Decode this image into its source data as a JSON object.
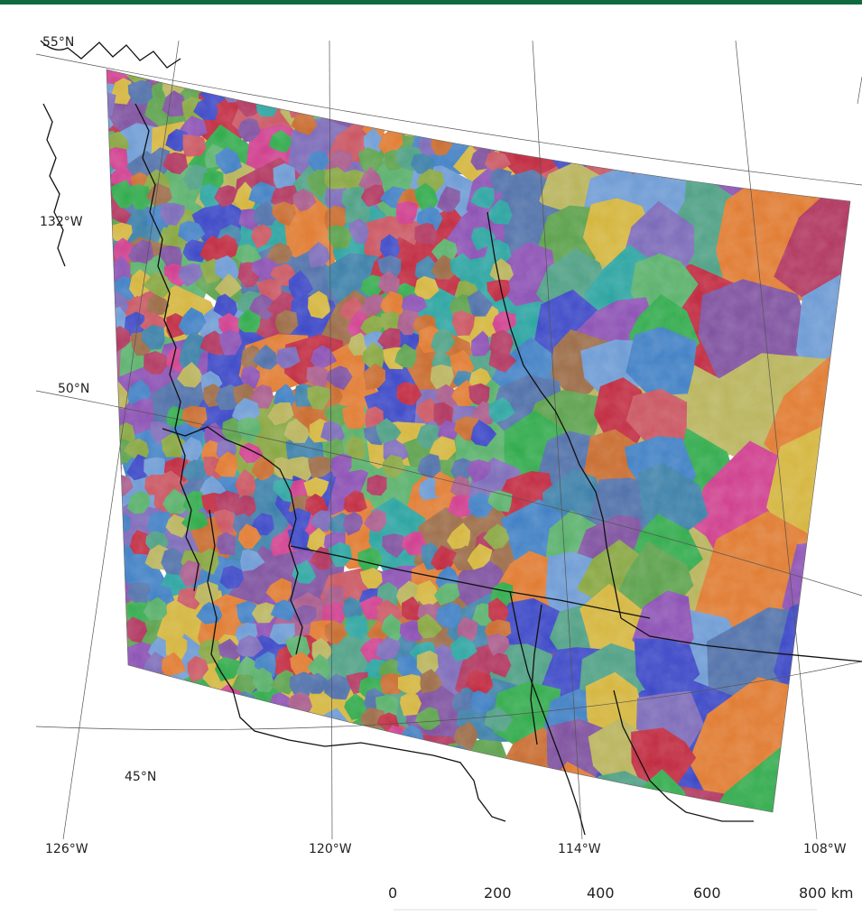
{
  "map": {
    "graticule_labels": {
      "lat_55": "55°N",
      "lat_50": "50°N",
      "lat_45": "45°N",
      "lon_132": "132°W",
      "lon_126": "126°W",
      "lon_120": "120°W",
      "lon_114": "114°W",
      "lon_108": "108°W"
    },
    "scale_bar": {
      "ticks": [
        "0",
        "200",
        "400",
        "600",
        "800 km"
      ]
    },
    "colors": {
      "header": "#0f6b3d",
      "coastline": "#111111",
      "graticule": "#555555",
      "region_palette": [
        "#8a4fb3",
        "#3f7fc4",
        "#c0283e",
        "#2faa4a",
        "#b8b35a",
        "#7d4f9e",
        "#4e6fa8",
        "#a85a8a",
        "#c86a2c",
        "#29a3a0",
        "#5aa04a",
        "#cf3d8d",
        "#9a6a45",
        "#3a46c6",
        "#d4b53c",
        "#6c9ad4",
        "#b0345d",
        "#58b06a",
        "#e07a2f",
        "#7b69b8",
        "#4d9f84",
        "#c95460",
        "#86a53e",
        "#3b7fa8"
      ]
    }
  }
}
